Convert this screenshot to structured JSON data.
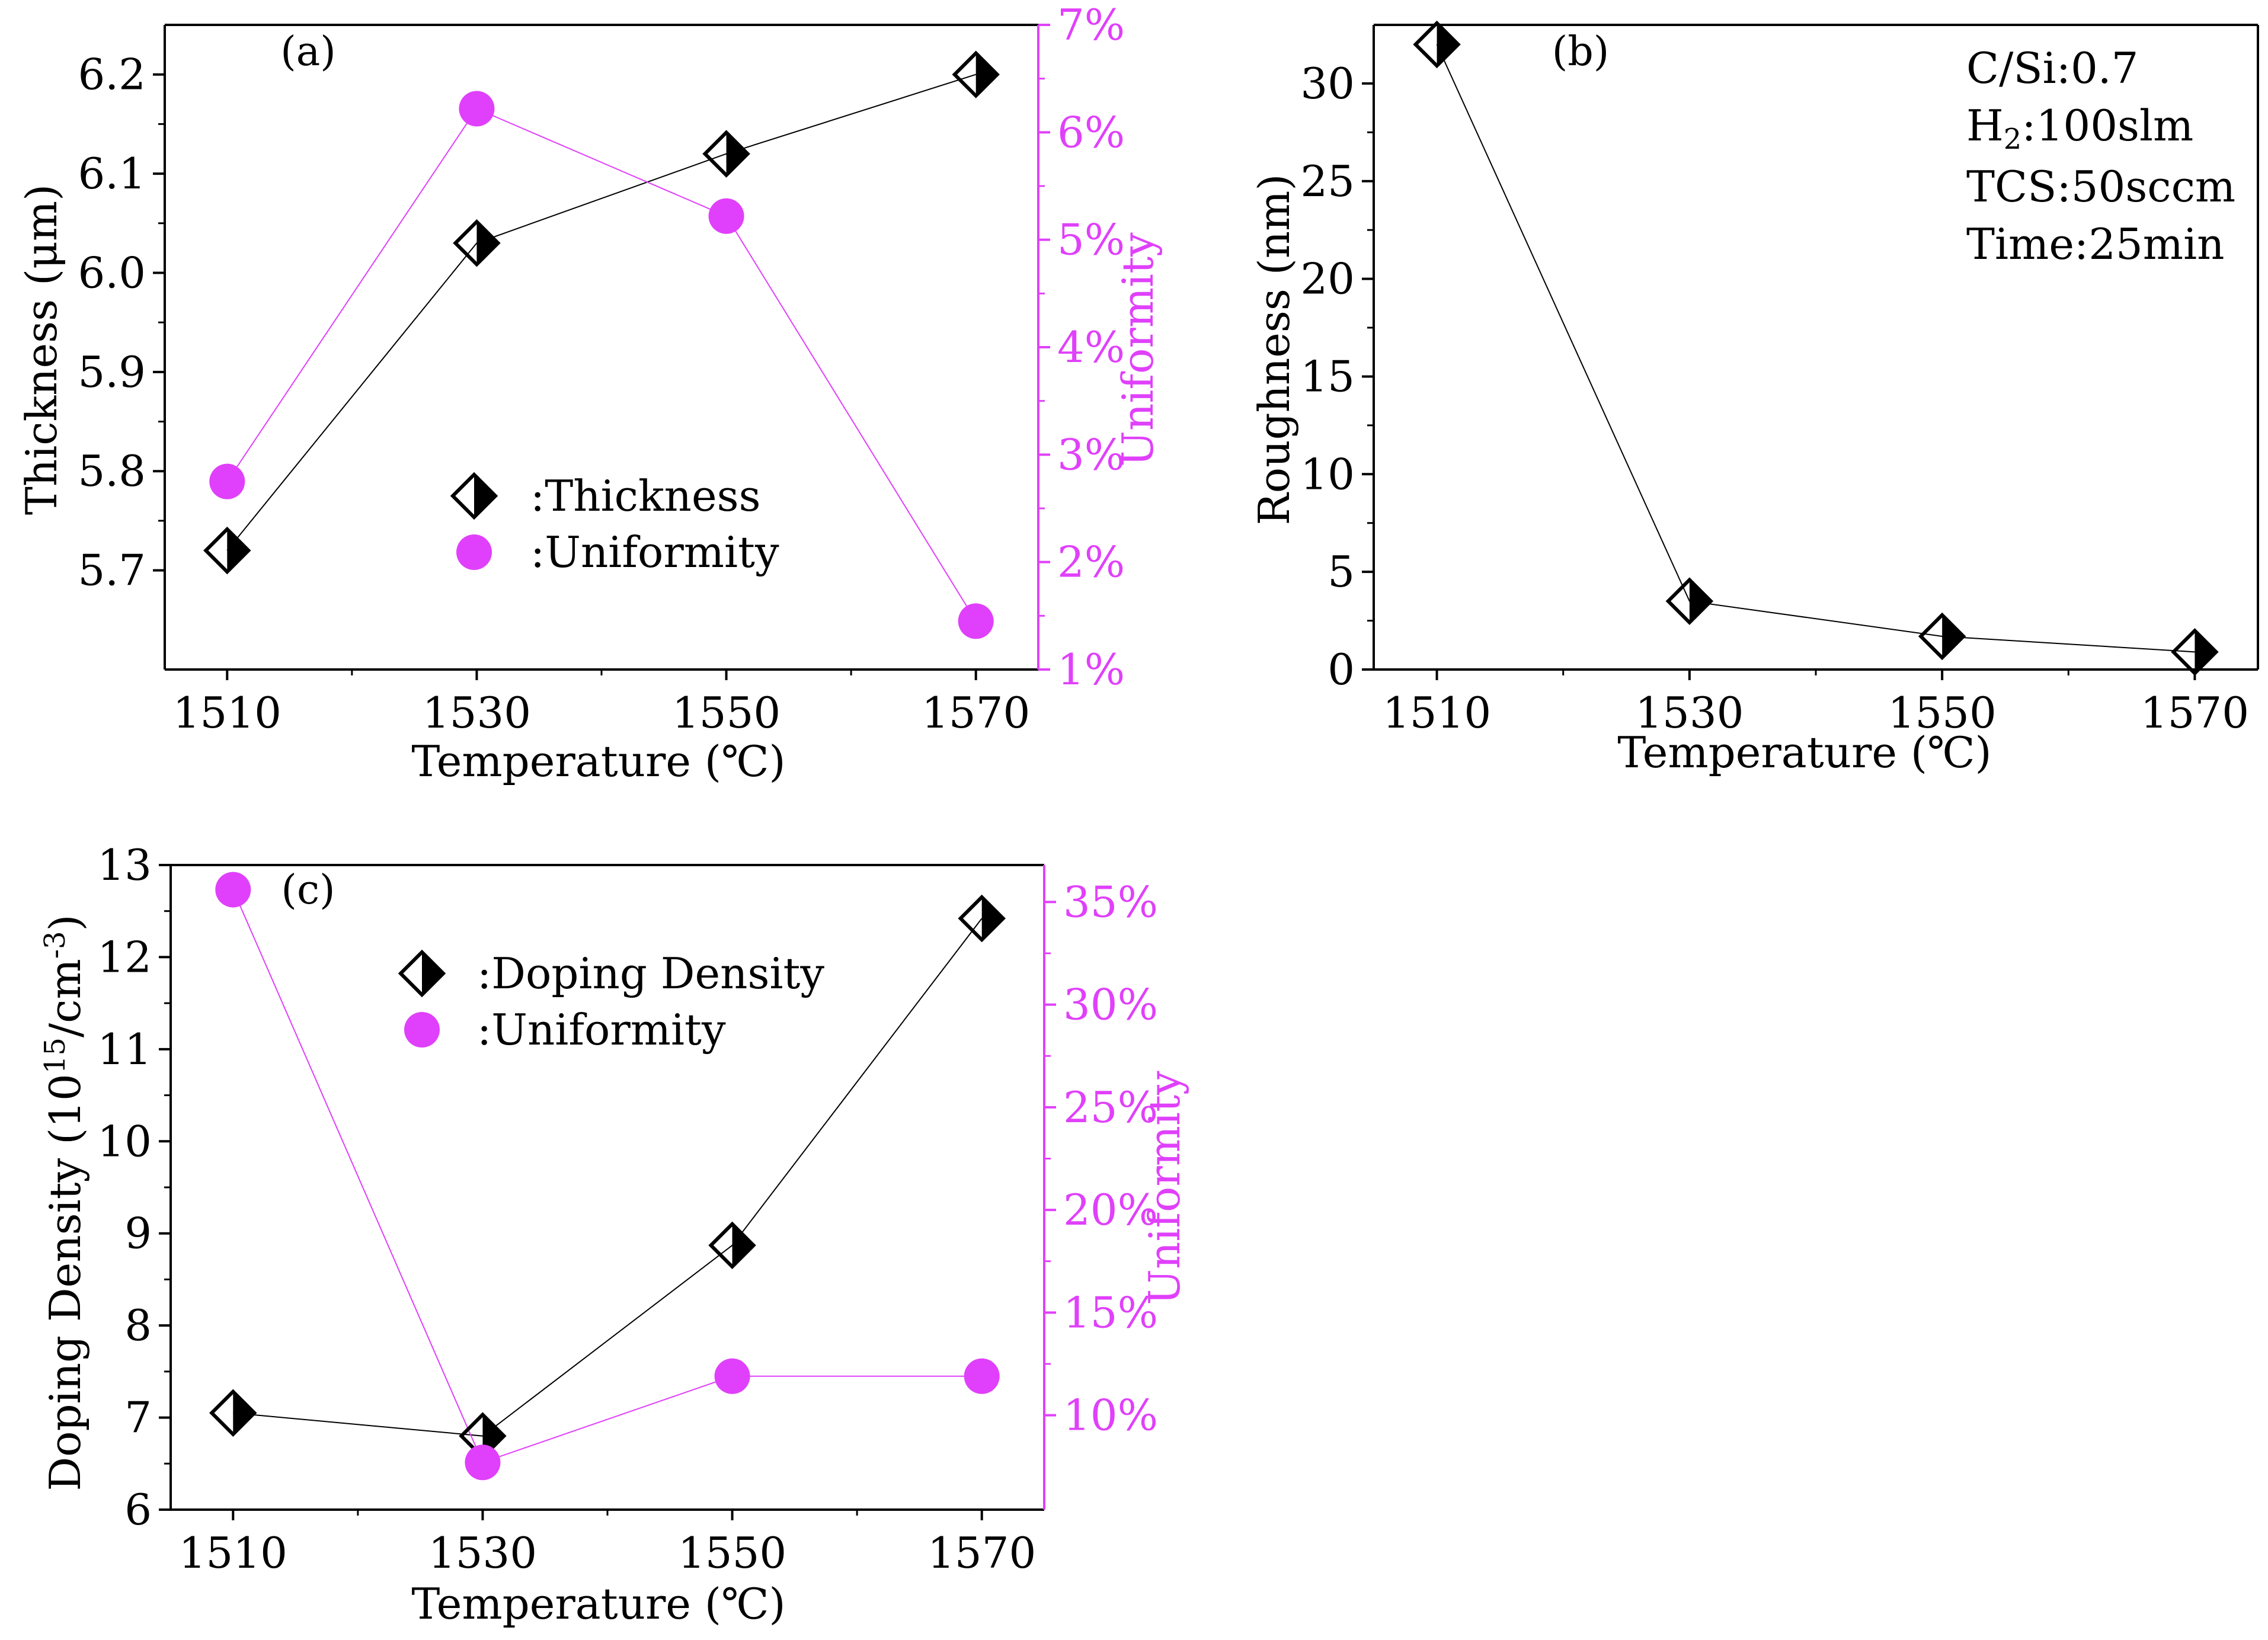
{
  "colors": {
    "axis": "#000000",
    "secondary": "#E040FB",
    "line_primary": "#000000",
    "line_secondary": "#E040FB"
  },
  "chart_data": [
    {
      "panel": "a",
      "type": "line",
      "label": "(a)",
      "x": [
        1510,
        1530,
        1550,
        1570
      ],
      "xlabel": "Temperature (℃)",
      "xticks": [
        "1510",
        "1530",
        "1550",
        "1570"
      ],
      "xlim": [
        1505,
        1575
      ],
      "ylabel": "Thickness (μm)",
      "ylim": [
        5.6,
        6.25
      ],
      "yticks": [
        5.7,
        5.8,
        5.9,
        6.0,
        6.1,
        6.2
      ],
      "ytick_labels": [
        "5.7",
        "5.8",
        "5.9",
        "6.0",
        "6.1",
        "6.2"
      ],
      "y2label": "Uniformity",
      "y2lim": [
        1,
        7
      ],
      "y2ticks": [
        1,
        2,
        3,
        4,
        5,
        6,
        7
      ],
      "y2tick_labels": [
        "1%",
        "2%",
        "3%",
        "4%",
        "5%",
        "6%",
        "7%"
      ],
      "series": [
        {
          "name": "Thickness",
          "axis": "left",
          "marker": "diamond",
          "values": [
            5.72,
            6.03,
            6.12,
            6.2
          ]
        },
        {
          "name": "Uniformity",
          "axis": "right",
          "marker": "circle",
          "values": [
            2.75,
            6.22,
            5.22,
            1.45
          ]
        }
      ],
      "legend": {
        "items": [
          ":Thickness",
          ":Uniformity"
        ],
        "position": "center"
      }
    },
    {
      "panel": "b",
      "type": "line",
      "label": "(b)",
      "x": [
        1510,
        1530,
        1550,
        1570
      ],
      "xlabel": "Temperature (℃)",
      "xticks": [
        "1510",
        "1530",
        "1550",
        "1570"
      ],
      "xlim": [
        1505,
        1575
      ],
      "ylabel": "Roughness (nm)",
      "ylim": [
        0,
        33
      ],
      "yticks": [
        0,
        5,
        10,
        15,
        20,
        25,
        30
      ],
      "ytick_labels": [
        "0",
        "5",
        "10",
        "15",
        "20",
        "25",
        "30"
      ],
      "series": [
        {
          "name": "Roughness",
          "axis": "left",
          "marker": "diamond",
          "values": [
            32,
            3.5,
            1.7,
            0.9
          ]
        }
      ],
      "annotations": {
        "cs": "C/Si:0.7",
        "h2_prefix": "H",
        "h2_sub": "2",
        "h2_suffix": ":100slm",
        "tcs": "TCS:50sccm",
        "time": "Time:25min"
      }
    },
    {
      "panel": "c",
      "type": "line",
      "label": "(c)",
      "x": [
        1510,
        1530,
        1550,
        1570
      ],
      "xlabel": "Temperature (℃)",
      "xticks": [
        "1510",
        "1530",
        "1550",
        "1570"
      ],
      "xlim": [
        1505,
        1575
      ],
      "ylabel_main": "Doping Density (10",
      "ylabel_sup1": "15",
      "ylabel_mid": "/cm",
      "ylabel_sup2": "-3",
      "ylabel_end": ")",
      "ylim": [
        6,
        13
      ],
      "yticks": [
        6,
        7,
        8,
        9,
        10,
        11,
        12,
        13
      ],
      "ytick_labels": [
        "6",
        "7",
        "8",
        "9",
        "10",
        "11",
        "12",
        "13"
      ],
      "y2label": "Uniformity",
      "y2lim": [
        5.4,
        36.8
      ],
      "y2ticks": [
        10,
        15,
        20,
        25,
        30,
        35
      ],
      "y2tick_labels": [
        "10%",
        "15%",
        "20%",
        "25%",
        "30%",
        "35%"
      ],
      "series": [
        {
          "name": "Doping Density",
          "axis": "left",
          "marker": "diamond",
          "values": [
            7.05,
            6.8,
            8.87,
            12.42
          ]
        },
        {
          "name": "Uniformity",
          "axis": "right",
          "marker": "circle",
          "values": [
            35.6,
            7.7,
            11.9,
            11.9
          ]
        }
      ],
      "legend": {
        "items": [
          ":Doping Density",
          ":Uniformity"
        ],
        "position": "top-left"
      }
    }
  ]
}
